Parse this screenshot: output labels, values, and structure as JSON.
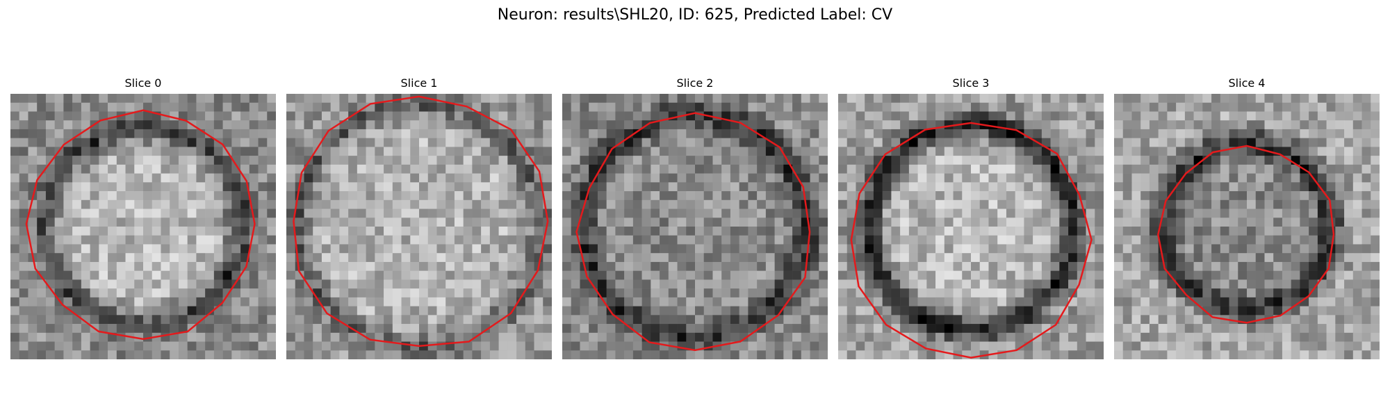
{
  "figure": {
    "title": "Neuron: results\\SHL20, ID: 625, Predicted Label: CV",
    "contour_color": "#e41a1c"
  },
  "slices": [
    {
      "title": "Slice 0",
      "ring_radius": 0.36,
      "ring_darkness": 0.35,
      "inner": 0.72,
      "outer": 0.55,
      "contour_r": 0.43,
      "contour_cy": 0.49,
      "seed": 11
    },
    {
      "title": "Slice 1",
      "ring_radius": 0.45,
      "ring_darkness": 0.25,
      "inner": 0.7,
      "outer": 0.6,
      "contour_r": 0.48,
      "contour_cy": 0.48,
      "seed": 23
    },
    {
      "title": "Slice 2",
      "ring_radius": 0.42,
      "ring_darkness": 0.35,
      "inner": 0.55,
      "outer": 0.55,
      "contour_r": 0.44,
      "contour_cy": 0.52,
      "seed": 37
    },
    {
      "title": "Slice 3",
      "ring_radius": 0.38,
      "ring_darkness": 0.5,
      "inner": 0.72,
      "outer": 0.62,
      "contour_r": 0.45,
      "contour_cy": 0.55,
      "seed": 41
    },
    {
      "title": "Slice 4",
      "ring_radius": 0.32,
      "ring_darkness": 0.4,
      "inner": 0.55,
      "outer": 0.65,
      "contour_r": 0.33,
      "contour_cy": 0.53,
      "seed": 53
    }
  ]
}
